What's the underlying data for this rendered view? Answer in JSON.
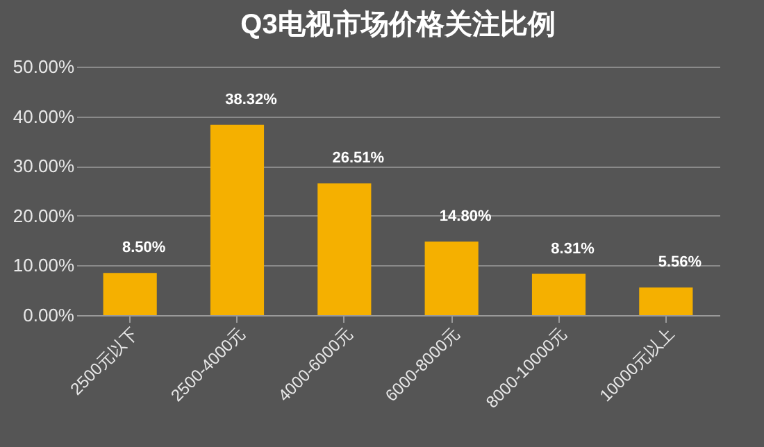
{
  "chart_data": {
    "type": "bar",
    "title": "Q3电视市场价格关注比例",
    "categories": [
      "2500元以下",
      "2500-4000元",
      "4000-6000元",
      "6000-8000元",
      "8000-10000元",
      "10000元以上"
    ],
    "values": [
      8.5,
      38.32,
      26.51,
      14.8,
      8.31,
      5.56
    ],
    "value_labels": [
      "8.50%",
      "38.32%",
      "26.51%",
      "14.80%",
      "8.31%",
      "5.56%"
    ],
    "color": "#f5b000",
    "ylim": [
      0,
      50
    ],
    "yticks": [
      {
        "value": 0,
        "label": "0.00%"
      },
      {
        "value": 10,
        "label": "10.00%"
      },
      {
        "value": 20,
        "label": "20.00%"
      },
      {
        "value": 30,
        "label": "30.00%"
      },
      {
        "value": 40,
        "label": "40.00%"
      },
      {
        "value": 50,
        "label": "50.00%"
      }
    ],
    "grid": "y"
  }
}
